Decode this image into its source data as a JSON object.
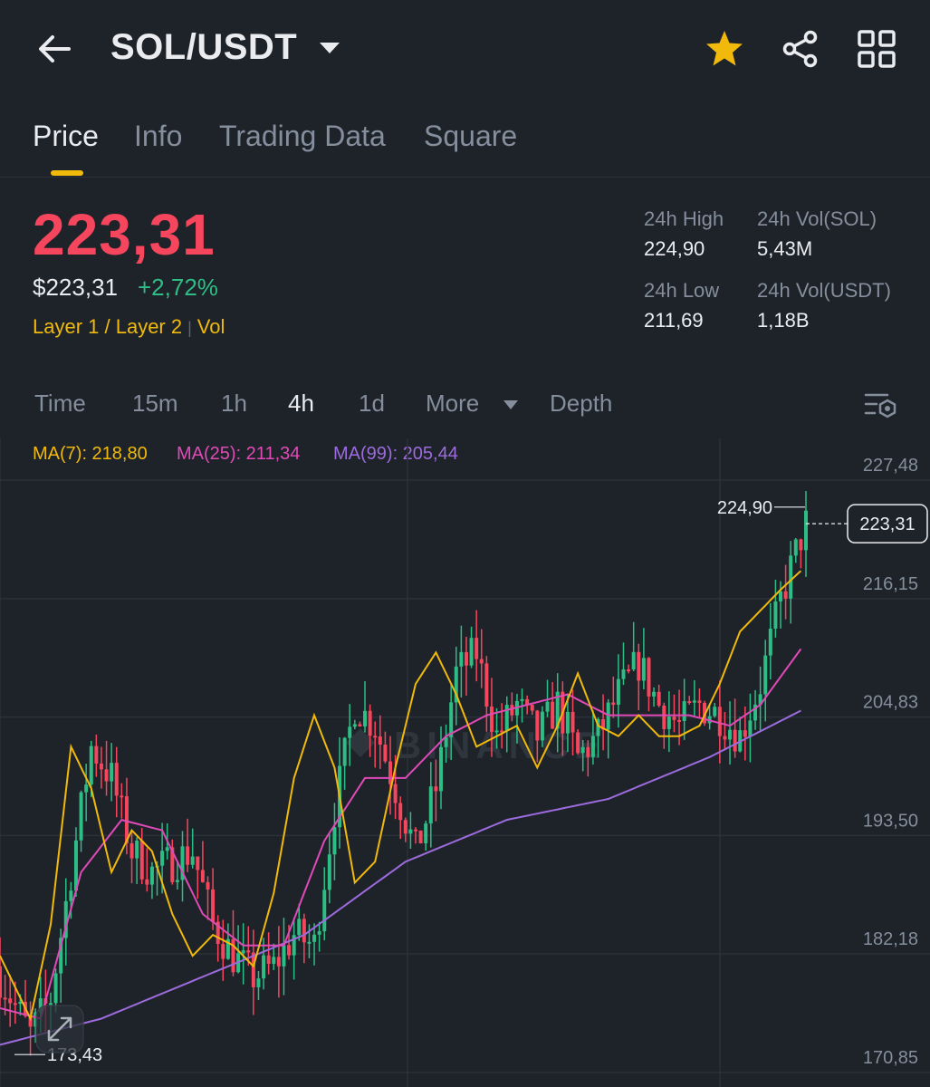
{
  "header": {
    "title": "SOL/USDT",
    "icons": [
      "back-arrow-icon",
      "caret-down-icon",
      "star-icon",
      "share-icon",
      "grid-icon"
    ],
    "star_color": "#f0b90b"
  },
  "tabs": [
    {
      "label": "Price",
      "active": true
    },
    {
      "label": "Info",
      "active": false
    },
    {
      "label": "Trading Data",
      "active": false
    },
    {
      "label": "Square",
      "active": false
    }
  ],
  "price": {
    "last": "223,31",
    "usd": "$223,31",
    "change": "+2,72%",
    "tag1": "Layer 1 / Layer 2",
    "tag2": "Vol",
    "down_color": "#f6465d",
    "up_color": "#2ebd85"
  },
  "stats": {
    "high_label": "24h High",
    "high_value": "224,90",
    "vol_sol_label": "24h Vol(SOL)",
    "vol_sol_value": "5,43M",
    "low_label": "24h Low",
    "low_value": "211,69",
    "vol_usdt_label": "24h Vol(USDT)",
    "vol_usdt_value": "1,18B"
  },
  "timeframes": [
    {
      "label": "Time",
      "active": false
    },
    {
      "label": "15m",
      "active": false
    },
    {
      "label": "1h",
      "active": false
    },
    {
      "label": "4h",
      "active": true
    },
    {
      "label": "1d",
      "active": false
    },
    {
      "label": "More",
      "active": false
    },
    {
      "label": "Depth",
      "active": false
    }
  ],
  "ma": {
    "ma7": "MA(7): 218,80",
    "ma25": "MA(25): 211,34",
    "ma99": "MA(99): 205,44",
    "ma7_color": "#f0b90b",
    "ma25_color": "#e04ab8",
    "ma99_color": "#9c6bde"
  },
  "chart_data": {
    "type": "candlestick",
    "y_ticks": [
      "227,48",
      "216,15",
      "204,83",
      "193,50",
      "182,18",
      "170,85"
    ],
    "ylim": [
      170.85,
      227.48
    ],
    "high_marker": "224,90",
    "low_marker": "173,43",
    "last_price_label": "223,31",
    "watermark": "BINANCE",
    "candle_count": 160,
    "close_anchors": [
      [
        0,
        180
      ],
      [
        6,
        174.5
      ],
      [
        10,
        178
      ],
      [
        14,
        190
      ],
      [
        18,
        202
      ],
      [
        22,
        199
      ],
      [
        26,
        192
      ],
      [
        30,
        190
      ],
      [
        34,
        191
      ],
      [
        38,
        192
      ],
      [
        42,
        185
      ],
      [
        46,
        182
      ],
      [
        50,
        180
      ],
      [
        54,
        181
      ],
      [
        58,
        184
      ],
      [
        62,
        183
      ],
      [
        66,
        196
      ],
      [
        70,
        206
      ],
      [
        74,
        204
      ],
      [
        78,
        198
      ],
      [
        82,
        192
      ],
      [
        86,
        198
      ],
      [
        90,
        209
      ],
      [
        94,
        211
      ],
      [
        98,
        203
      ],
      [
        102,
        206
      ],
      [
        106,
        203
      ],
      [
        110,
        206
      ],
      [
        114,
        201
      ],
      [
        118,
        203
      ],
      [
        122,
        207
      ],
      [
        126,
        210
      ],
      [
        130,
        206
      ],
      [
        134,
        204
      ],
      [
        138,
        206
      ],
      [
        142,
        205
      ],
      [
        146,
        203
      ],
      [
        150,
        208
      ],
      [
        154,
        216
      ],
      [
        158,
        222
      ],
      [
        159,
        223.31
      ]
    ],
    "ma7_anchors": [
      [
        0,
        182
      ],
      [
        6,
        176
      ],
      [
        10,
        185
      ],
      [
        14,
        202
      ],
      [
        18,
        198
      ],
      [
        22,
        190
      ],
      [
        26,
        194
      ],
      [
        30,
        192
      ],
      [
        34,
        186
      ],
      [
        38,
        182
      ],
      [
        42,
        184
      ],
      [
        46,
        183
      ],
      [
        50,
        181
      ],
      [
        54,
        188
      ],
      [
        58,
        199
      ],
      [
        62,
        205
      ],
      [
        66,
        200
      ],
      [
        70,
        189
      ],
      [
        74,
        191
      ],
      [
        78,
        200
      ],
      [
        82,
        208
      ],
      [
        86,
        211
      ],
      [
        90,
        207
      ],
      [
        94,
        202
      ],
      [
        98,
        203
      ],
      [
        102,
        204
      ],
      [
        106,
        200
      ],
      [
        110,
        204
      ],
      [
        114,
        209
      ],
      [
        118,
        204
      ],
      [
        122,
        203
      ],
      [
        126,
        205
      ],
      [
        130,
        203
      ],
      [
        134,
        203
      ],
      [
        138,
        204
      ],
      [
        142,
        208
      ],
      [
        146,
        213
      ],
      [
        150,
        215
      ],
      [
        154,
        217
      ],
      [
        158,
        218.8
      ]
    ],
    "ma25_anchors": [
      [
        0,
        177
      ],
      [
        8,
        176
      ],
      [
        16,
        190
      ],
      [
        24,
        195
      ],
      [
        32,
        194
      ],
      [
        40,
        186
      ],
      [
        48,
        183
      ],
      [
        56,
        183
      ],
      [
        64,
        193
      ],
      [
        72,
        199
      ],
      [
        80,
        199
      ],
      [
        88,
        203
      ],
      [
        96,
        205
      ],
      [
        104,
        206
      ],
      [
        112,
        207
      ],
      [
        120,
        205
      ],
      [
        128,
        205
      ],
      [
        136,
        205
      ],
      [
        144,
        204
      ],
      [
        150,
        206
      ],
      [
        158,
        211.34
      ]
    ],
    "ma99_anchors": [
      [
        0,
        173.5
      ],
      [
        20,
        176
      ],
      [
        40,
        180
      ],
      [
        60,
        184
      ],
      [
        80,
        191
      ],
      [
        100,
        195
      ],
      [
        120,
        197
      ],
      [
        140,
        201
      ],
      [
        158,
        205.44
      ]
    ]
  }
}
